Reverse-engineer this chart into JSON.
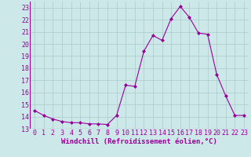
{
  "x": [
    0,
    1,
    2,
    3,
    4,
    5,
    6,
    7,
    8,
    9,
    10,
    11,
    12,
    13,
    14,
    15,
    16,
    17,
    18,
    19,
    20,
    21,
    22,
    23
  ],
  "y": [
    14.5,
    14.1,
    13.8,
    13.6,
    13.5,
    13.5,
    13.4,
    13.4,
    13.35,
    14.1,
    16.6,
    16.5,
    19.4,
    20.7,
    20.3,
    22.1,
    23.1,
    22.2,
    20.9,
    20.8,
    17.5,
    15.7,
    14.1,
    14.1
  ],
  "line_color": "#990099",
  "marker": "D",
  "marker_size": 2.0,
  "bg_color": "#cce8e8",
  "grid_color": "#aacccc",
  "xlabel": "Windchill (Refroidissement éolien,°C)",
  "xlabel_color": "#990099",
  "xlabel_fontsize": 6.5,
  "tick_color": "#990099",
  "tick_fontsize": 6.0,
  "ylim": [
    13,
    23.5
  ],
  "yticks": [
    13,
    14,
    15,
    16,
    17,
    18,
    19,
    20,
    21,
    22,
    23
  ],
  "xlim": [
    -0.5,
    23.5
  ],
  "linewidth": 0.8
}
